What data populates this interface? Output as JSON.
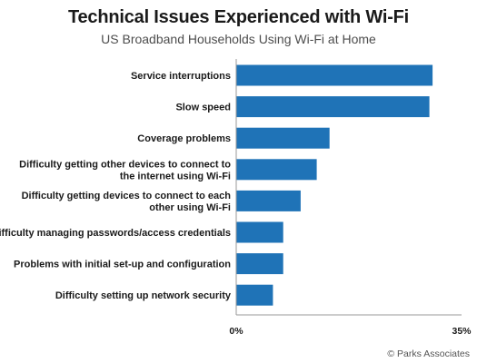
{
  "header": {
    "title": "Technical Issues Experienced with Wi-Fi",
    "subtitle": "US Broadband Households Using Wi-Fi at Home"
  },
  "credit": "© Parks Associates",
  "colors": {
    "bar": "#1f73b7",
    "axis": "#999999"
  },
  "chart_data": {
    "type": "bar",
    "orientation": "horizontal",
    "title": "Technical Issues Experienced with Wi-Fi",
    "subtitle": "US Broadband Households Using Wi-Fi at Home",
    "categories": [
      [
        "Service interruptions"
      ],
      [
        "Slow speed"
      ],
      [
        "Coverage problems"
      ],
      [
        "Difficulty getting other devices to connect to",
        "the internet using Wi-Fi"
      ],
      [
        "Difficulty getting devices to connect to each",
        "other using Wi-Fi"
      ],
      [
        "Difficulty managing passwords/access credentials"
      ],
      [
        "Problems with initial set-up and configuration"
      ],
      [
        "Difficulty setting up network security"
      ]
    ],
    "values": [
      30.5,
      30,
      14.5,
      12.5,
      10,
      7.3,
      7.3,
      5.7
    ],
    "unit": "%",
    "xlim": [
      0,
      35
    ],
    "tick_labels": [
      "0%",
      "35%"
    ],
    "grid": false,
    "legend": "none"
  }
}
